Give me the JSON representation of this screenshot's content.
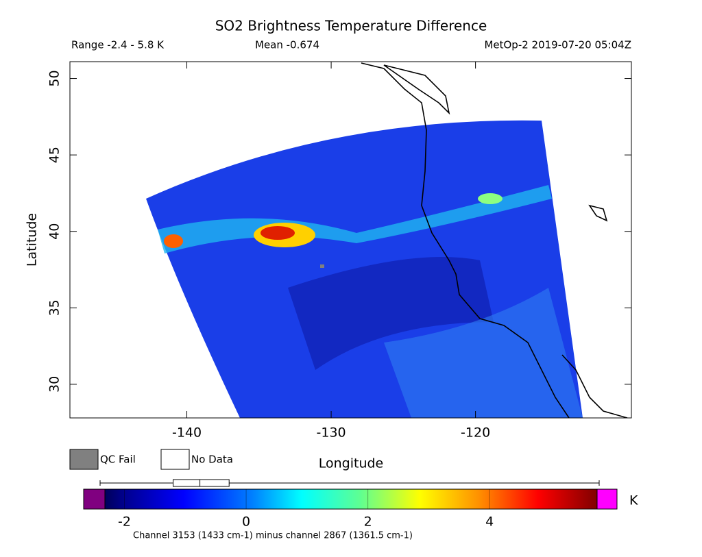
{
  "chart_data": {
    "type": "map",
    "title": "SO2 Brightness Temperature Difference",
    "range_text": "Range -2.4 - 5.8 K",
    "mean_text": "Mean -0.674",
    "source_text": "MetOp-2 2019-07-20 05:04Z",
    "xlabel": "Longitude",
    "ylabel": "Latitude",
    "xlim": [
      -148.1,
      -109.2
    ],
    "ylim": [
      27.8,
      51.1
    ],
    "xticks": [
      -140,
      -130,
      -120
    ],
    "yticks": [
      30,
      35,
      40,
      45,
      50
    ],
    "legend": [
      {
        "name": "QC Fail",
        "color": "#808080"
      },
      {
        "name": "No Data",
        "color": "#ffffff"
      }
    ],
    "colorbar": {
      "clim": [
        -2.4,
        5.8
      ],
      "ticks": [
        -2,
        0,
        2,
        4
      ],
      "unit": "K",
      "under_color": "#800080",
      "over_color": "#ff00ff",
      "stats": {
        "min": -2.4,
        "q1": -1.2,
        "median": -0.76,
        "q3": -0.28,
        "max": 5.8
      }
    },
    "note": "Channel 3153 (1433 cm-1) minus channel 2867 (1361.5 cm-1)"
  }
}
